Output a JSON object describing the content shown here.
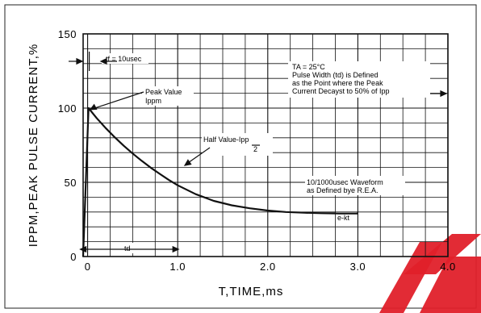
{
  "chart_data": {
    "type": "line",
    "xlabel": "T,TIME,ms",
    "ylabel": "IPPM,PEAK PULSE  CURRENT,%",
    "xlim": [
      -0.05,
      4.0
    ],
    "ylim": [
      0,
      150
    ],
    "x_ticks": [
      {
        "value": 0,
        "label": "0"
      },
      {
        "value": 1,
        "label": "1.0"
      },
      {
        "value": 2,
        "label": "2.0"
      },
      {
        "value": 3,
        "label": "3.0"
      },
      {
        "value": 4,
        "label": "4.0"
      }
    ],
    "y_ticks": [
      {
        "value": 0,
        "label": "0"
      },
      {
        "value": 50,
        "label": "50"
      },
      {
        "value": 100,
        "label": "100"
      },
      {
        "value": 150,
        "label": "150"
      }
    ],
    "grid": true,
    "series": [
      {
        "x": [
          -0.05,
          0.01,
          0.1,
          0.2,
          0.3,
          0.4,
          0.5,
          0.6,
          0.7,
          0.8,
          0.9,
          1.0,
          1.2,
          1.4,
          1.6,
          1.8,
          2.0,
          2.2,
          2.4,
          2.6,
          2.8,
          3.0
        ],
        "y": [
          0,
          100,
          93.3,
          86.6,
          80.4,
          74.7,
          69.4,
          64.5,
          59.9,
          55.7,
          51.7,
          48.0,
          42.0,
          37.5,
          34.5,
          32.5,
          31.0,
          30.0,
          29.5,
          29.2,
          29.0,
          29.0
        ]
      }
    ],
    "annotations": {
      "tf": "tf = 10usec",
      "peak_1": "Peak Value",
      "peak_2": "Ippm",
      "ta_1": "TA = 25°C",
      "ta_2": "Pulse Width (td) is Defined",
      "ta_3": "as the Point where the Peak",
      "ta_4": "Current Decayst to 50% of Ipp",
      "half": "Half Value-Ipp",
      "half_den": "2",
      "wave_1": "10/1000usec Waveform",
      "wave_2": "as Defined bye R.E.A.",
      "ekt": "e-kt",
      "td": "td"
    },
    "colors": {
      "line": "#111111",
      "grid": "#111111",
      "watermark": "#e0202a"
    }
  }
}
